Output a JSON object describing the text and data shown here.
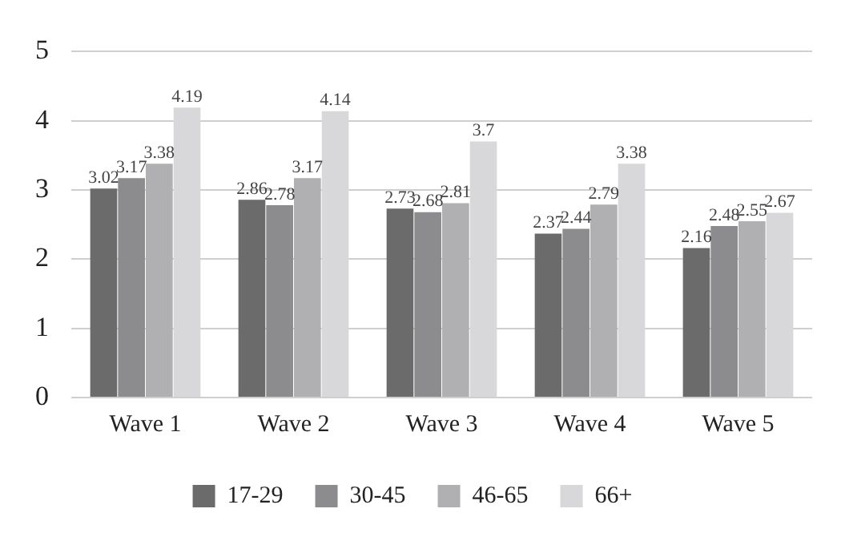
{
  "chart_data": {
    "type": "bar",
    "categories": [
      "Wave 1",
      "Wave 2",
      "Wave 3",
      "Wave 4",
      "Wave 5"
    ],
    "series": [
      {
        "name": "17-29",
        "color": "#6b6b6b",
        "values": [
          3.02,
          2.86,
          2.73,
          2.37,
          2.16
        ]
      },
      {
        "name": "30-45",
        "color": "#8c8c8e",
        "values": [
          3.17,
          2.78,
          2.68,
          2.44,
          2.48
        ]
      },
      {
        "name": "46-65",
        "color": "#b0b0b2",
        "values": [
          3.38,
          3.17,
          2.81,
          2.79,
          2.55
        ]
      },
      {
        "name": "66+",
        "color": "#d8d8da",
        "values": [
          4.19,
          4.14,
          3.7,
          3.38,
          2.67
        ]
      }
    ],
    "ylim": [
      0,
      5
    ],
    "yticks": [
      0,
      1,
      2,
      3,
      4,
      5
    ],
    "grid": "y",
    "legend": "bottom",
    "data_labels": true
  }
}
